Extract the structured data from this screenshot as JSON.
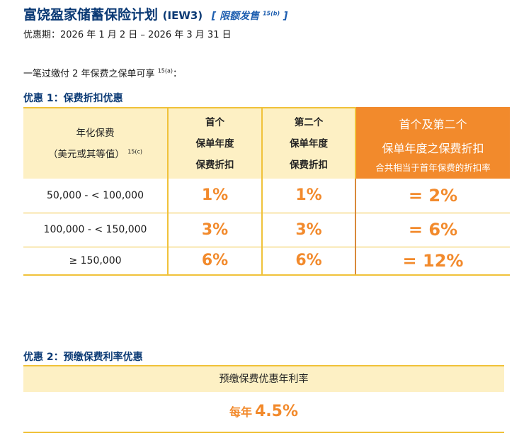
{
  "title": {
    "name": "富饶盈家储蓄保险计划",
    "code": "(IEW3)",
    "limited_open": "[ 限额发售",
    "limited_ref": "15(b)",
    "limited_close": " ]"
  },
  "period": "优惠期：2026 年 1 月 2 日 – 2026 年 3 月 31 日",
  "intro": {
    "text": "一笔过缴付 2 年保费之保单可享",
    "ref": "15(a)",
    "colon": "："
  },
  "offer1": {
    "title": "优惠 1：保费折扣优惠",
    "headers": {
      "col1_line1": "年化保费",
      "col1_line2": "（美元或其等值）",
      "col1_ref": "15(c)",
      "col2_line1": "首个",
      "col2_line2": "保单年度",
      "col2_line3": "保费折扣",
      "col3_line1": "第二个",
      "col3_line2": "保单年度",
      "col3_line3": "保费折扣",
      "col4_line1": "首个及第二个",
      "col4_line2": "保单年度之保费折扣",
      "col4_line3": "合共相当于首年保费的折扣率"
    },
    "rows": [
      {
        "range": "50,000 - < 100,000",
        "first": "1%",
        "second": "1%",
        "total": "= 2%"
      },
      {
        "range": "100,000 - < 150,000",
        "first": "3%",
        "second": "3%",
        "total": "= 6%"
      },
      {
        "range": "≥ 150,000",
        "first": "6%",
        "second": "6%",
        "total": "= 12%"
      }
    ]
  },
  "offer2": {
    "title": "优惠 2：预缴保费利率优惠",
    "header": "预缴保费优惠年利率",
    "value_prefix": "每年",
    "value": "4.5%"
  },
  "colors": {
    "navy": "#0b3a75",
    "orange": "#f28a2c",
    "cream": "#fdf0c4",
    "gold_border": "#f0c23a"
  }
}
